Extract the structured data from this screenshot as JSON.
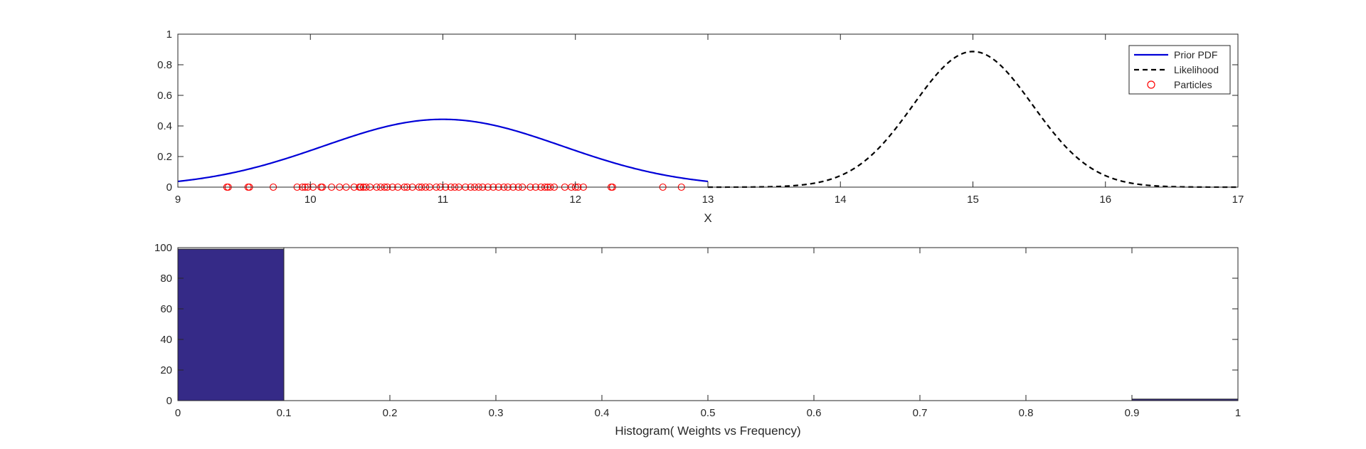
{
  "chart_data": [
    {
      "type": "line",
      "xlabel": "X",
      "ylabel": "",
      "xlim": [
        9,
        17
      ],
      "ylim": [
        0,
        1
      ],
      "x_ticks": [
        9,
        10,
        11,
        12,
        13,
        14,
        15,
        16,
        17
      ],
      "y_ticks": [
        0,
        0.2,
        0.4,
        0.6,
        0.8,
        1
      ],
      "y_tick_labels": [
        "0",
        "0.2",
        "0.4",
        "0.6",
        "0.8",
        "1"
      ],
      "grid": false,
      "legend_position": "top-right",
      "series": [
        {
          "name": "Prior PDF",
          "kind": "gaussian",
          "mean": 11,
          "sd": 0.9,
          "range": [
            9,
            13
          ],
          "color": "#0000d8",
          "style": "solid"
        },
        {
          "name": "Likelihood",
          "kind": "gaussian",
          "mean": 15,
          "sd": 0.45,
          "range": [
            13,
            17
          ],
          "color": "#000000",
          "style": "dashed"
        },
        {
          "name": "Particles",
          "kind": "markers",
          "color": "#ff0000",
          "y": 0,
          "x": [
            9.37,
            9.38,
            9.53,
            9.54,
            9.72,
            9.9,
            9.94,
            9.96,
            9.98,
            10.02,
            10.08,
            10.09,
            10.16,
            10.22,
            10.27,
            10.33,
            10.37,
            10.38,
            10.4,
            10.42,
            10.45,
            10.5,
            10.53,
            10.56,
            10.58,
            10.62,
            10.66,
            10.71,
            10.73,
            10.77,
            10.82,
            10.84,
            10.87,
            10.9,
            10.95,
            10.98,
            11.02,
            11.06,
            11.09,
            11.12,
            11.17,
            11.21,
            11.24,
            11.27,
            11.3,
            11.34,
            11.38,
            11.42,
            11.46,
            11.49,
            11.53,
            11.57,
            11.6,
            11.66,
            11.7,
            11.74,
            11.77,
            11.79,
            11.81,
            11.84,
            11.92,
            11.97,
            12.0,
            12.02,
            12.06,
            12.27,
            12.28,
            12.66,
            12.8
          ]
        }
      ]
    },
    {
      "type": "bar",
      "xlabel": "Histogram( Weights vs Frequency)",
      "ylabel": "",
      "xlim": [
        0,
        1
      ],
      "ylim": [
        0,
        100
      ],
      "x_ticks": [
        0,
        0.1,
        0.2,
        0.3,
        0.4,
        0.5,
        0.6,
        0.7,
        0.8,
        0.9,
        1
      ],
      "y_ticks": [
        0,
        20,
        40,
        60,
        80,
        100
      ],
      "bins": [
        {
          "from": 0,
          "to": 0.1,
          "count": 99
        },
        {
          "from": 0.9,
          "to": 1.0,
          "count": 1
        }
      ],
      "bar_color": "#352a87",
      "grid": false
    }
  ]
}
